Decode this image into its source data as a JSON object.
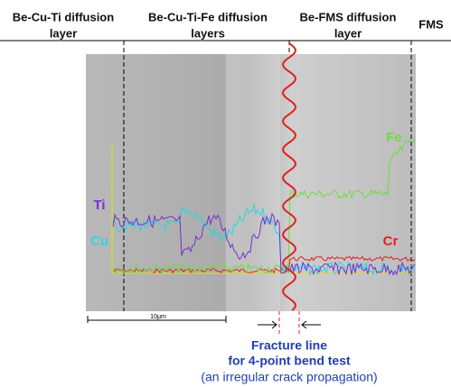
{
  "layers": [
    {
      "lines": [
        "Be-Cu-Ti diffusion",
        "layer"
      ]
    },
    {
      "lines": [
        "Be-Cu-Ti-Fe diffusion",
        "layers"
      ]
    },
    {
      "lines": [
        "Be-FMS diffusion",
        "layer"
      ]
    },
    {
      "lines": [
        "FMS"
      ]
    }
  ],
  "elements": [
    {
      "label": "Ti",
      "color": "#7a2fd0"
    },
    {
      "label": "Cu",
      "color": "#2ad6e0"
    },
    {
      "label": "Fe",
      "color": "#6edc3a"
    },
    {
      "label": "Cr",
      "color": "#e02020"
    }
  ],
  "scale_bar": "10μm",
  "fracture": {
    "lines": [
      "Fracture line",
      "for 4-point bend test"
    ],
    "note": "(an irregular crack propagation)"
  }
}
